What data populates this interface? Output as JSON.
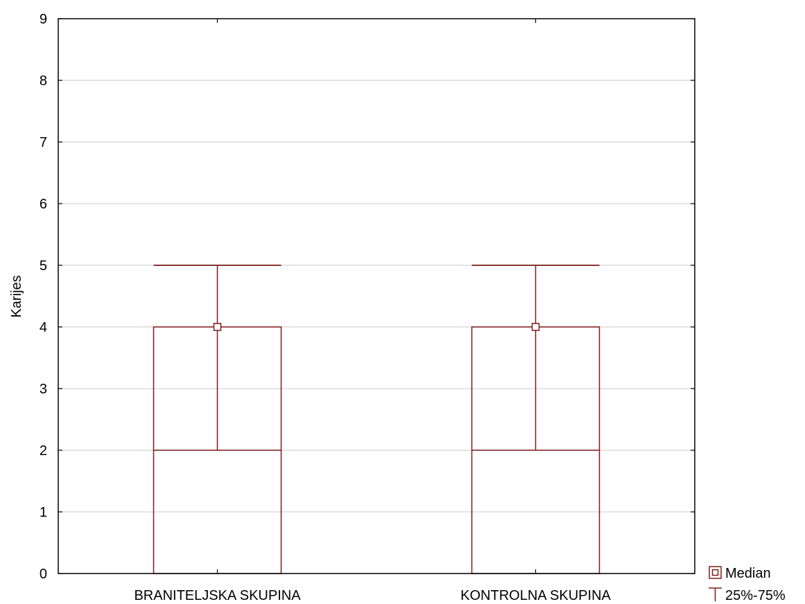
{
  "chart_data": {
    "type": "box",
    "ylabel": "Karijes",
    "ylim": [
      0,
      9
    ],
    "yticks": [
      0,
      1,
      2,
      3,
      4,
      5,
      6,
      7,
      8,
      9
    ],
    "grid": true,
    "legend_position": "bottom-right",
    "categories": [
      "BRANITELJSKA SKUPINA",
      "KONTROLNA SKUPINA"
    ],
    "series": [
      {
        "category": "BRANITELJSKA SKUPINA",
        "min": 0,
        "q1": 2,
        "median": 4,
        "q3": 4,
        "max": 5
      },
      {
        "category": "KONTROLNA SKUPINA",
        "min": 0,
        "q1": 2,
        "median": 4,
        "q3": 4,
        "max": 5
      }
    ],
    "legend": [
      {
        "symbol": "median-square-icon",
        "label": "Median"
      },
      {
        "symbol": "whisker-t-icon",
        "label": "25%-75%"
      }
    ],
    "colors": {
      "plot": "#7a1a1a",
      "grid": "#d4d4d4",
      "axis": "#000000"
    }
  }
}
